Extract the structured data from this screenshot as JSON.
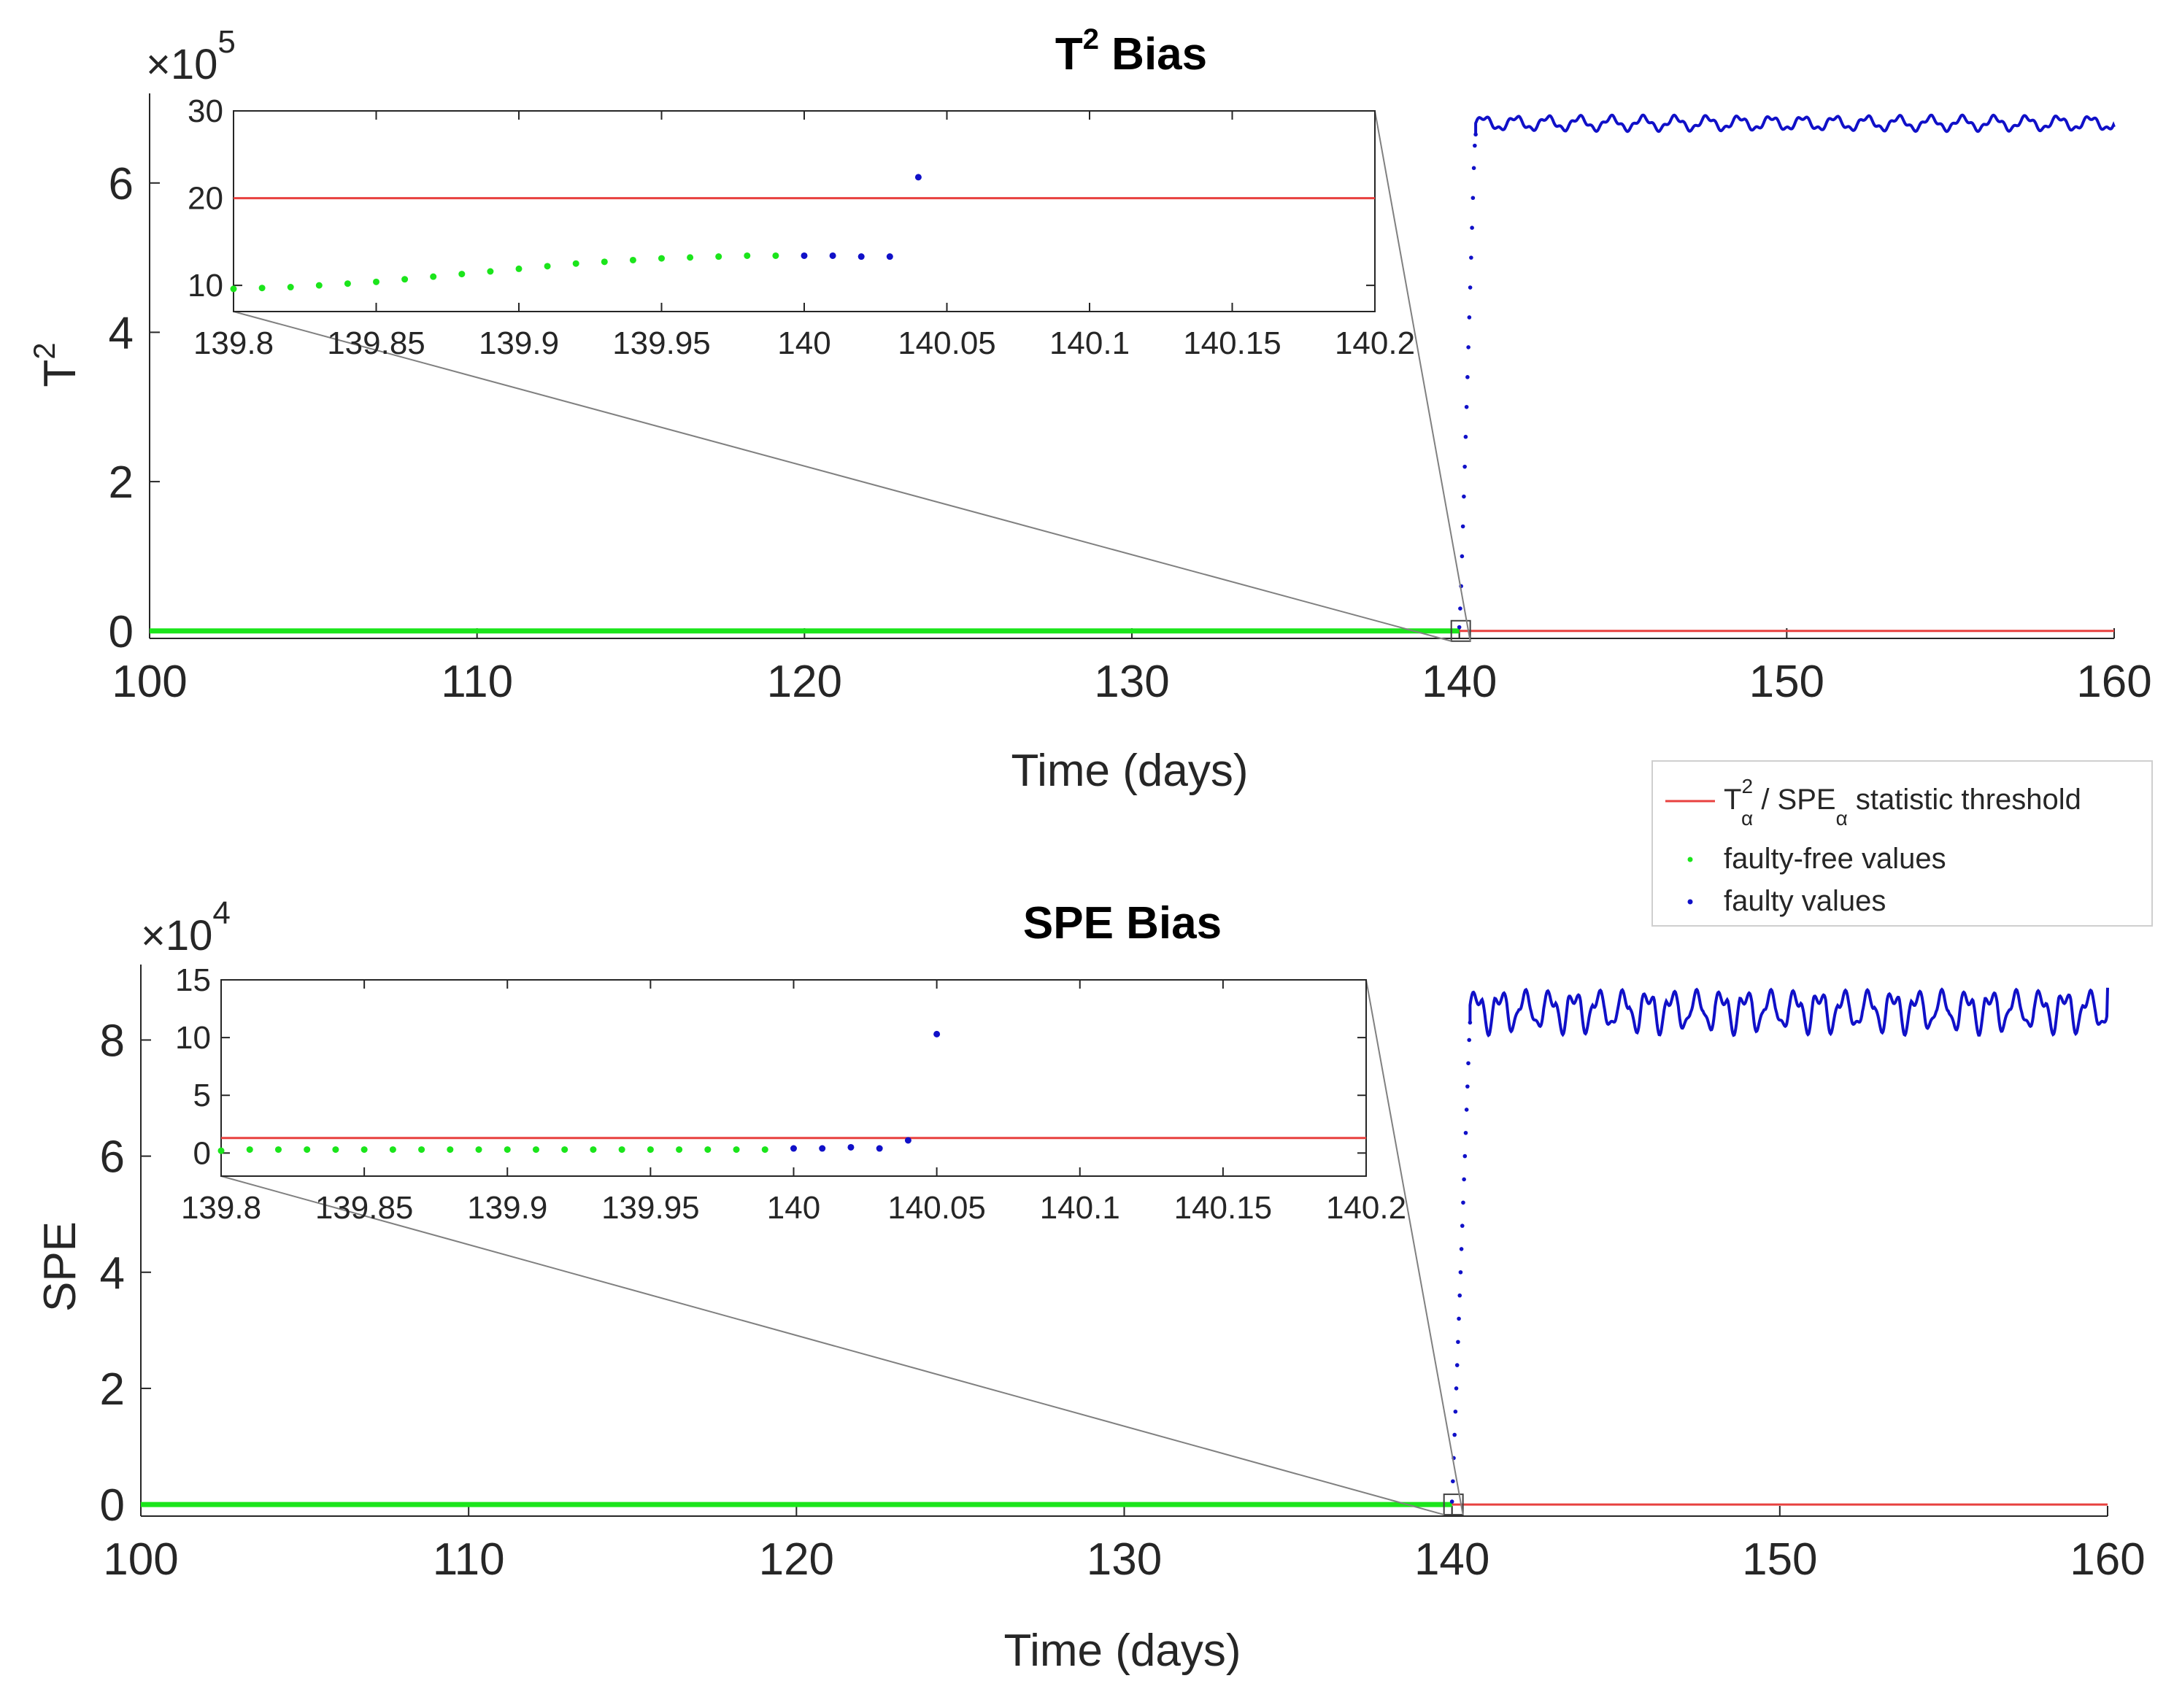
{
  "colors": {
    "threshold": "#e8413f",
    "fault_free": "#1be51b",
    "faulty": "#1010c8",
    "axis": "#262626",
    "zoom_lines": "#808080"
  },
  "legend": {
    "threshold_label": "T²α / SPEα statistic threshold",
    "threshold_label_parts": {
      "t": "T",
      "sup": "2",
      "alpha": "α",
      "mid": " / SPE",
      "alpha2": "α",
      "tail": " statistic threshold"
    },
    "fault_free_label": "faulty-free values",
    "faulty_label": "faulty values"
  },
  "chart_data": [
    {
      "id": "t2",
      "type": "scatter",
      "title": "T² Bias",
      "title_parts": {
        "main": "T",
        "sup": "2",
        "rest": " Bias"
      },
      "xlabel": "Time (days)",
      "ylabel": "T²",
      "ylabel_parts": {
        "main": "T",
        "sup": "2"
      },
      "exponent_label": {
        "base": "×10",
        "exp": "5"
      },
      "x_range": [
        100,
        160
      ],
      "y_range": [
        -0.1,
        7.2
      ],
      "x_ticks": [
        100,
        110,
        120,
        130,
        140,
        150,
        160
      ],
      "x_tick_labels": [
        "100",
        "110",
        "120",
        "130",
        "140",
        "150",
        "160"
      ],
      "y_ticks": [
        0,
        2,
        4,
        6
      ],
      "y_tick_labels": [
        "0",
        "2",
        "4",
        "6"
      ],
      "threshold": 0.0002,
      "fault_start": 140,
      "fault_free_range": [
        100,
        140
      ],
      "faulty_rise_values": [
        0.05,
        0.3,
        0.6,
        1.0,
        1.4,
        1.8,
        2.2,
        2.6,
        3.0,
        3.4,
        3.8,
        4.2,
        4.6,
        5.0,
        5.4,
        5.8,
        6.2,
        6.5,
        6.65
      ],
      "faulty_rise_x_range": [
        140.0,
        140.5
      ],
      "steady_level": 6.8,
      "steady_amplitude": 0.08,
      "steady_cycles": 20,
      "steady_end_value": 6.75,
      "inset": {
        "x_range": [
          139.8,
          140.2
        ],
        "y_range": [
          7,
          30
        ],
        "x_ticks": [
          139.8,
          139.85,
          139.9,
          139.95,
          140,
          140.05,
          140.1,
          140.15,
          140.2
        ],
        "x_tick_labels": [
          "139.8",
          "139.85",
          "139.9",
          "139.95",
          "140",
          "140.05",
          "140.1",
          "140.15",
          "140.2"
        ],
        "y_ticks": [
          10,
          20,
          30
        ],
        "y_tick_labels": [
          "10",
          "20",
          "30"
        ],
        "threshold": 20,
        "fault_free_points": [
          [
            139.8,
            9.6
          ],
          [
            139.81,
            9.7
          ],
          [
            139.82,
            9.8
          ],
          [
            139.83,
            10.0
          ],
          [
            139.84,
            10.2
          ],
          [
            139.85,
            10.4
          ],
          [
            139.86,
            10.7
          ],
          [
            139.87,
            11.0
          ],
          [
            139.88,
            11.3
          ],
          [
            139.89,
            11.6
          ],
          [
            139.9,
            11.9
          ],
          [
            139.91,
            12.2
          ],
          [
            139.92,
            12.5
          ],
          [
            139.93,
            12.7
          ],
          [
            139.94,
            12.9
          ],
          [
            139.95,
            13.1
          ],
          [
            139.96,
            13.2
          ],
          [
            139.97,
            13.3
          ],
          [
            139.98,
            13.4
          ],
          [
            139.99,
            13.4
          ]
        ],
        "faulty_points": [
          [
            140.0,
            13.4
          ],
          [
            140.01,
            13.4
          ],
          [
            140.02,
            13.3
          ],
          [
            140.03,
            13.3
          ],
          [
            140.04,
            22.4
          ]
        ]
      }
    },
    {
      "id": "spe",
      "type": "scatter",
      "title": "SPE Bias",
      "xlabel": "Time (days)",
      "ylabel": "SPE",
      "exponent_label": {
        "base": "×10",
        "exp": "4"
      },
      "x_range": [
        100,
        160
      ],
      "y_range": [
        -0.2,
        9.3
      ],
      "x_ticks": [
        100,
        110,
        120,
        130,
        140,
        150,
        160
      ],
      "x_tick_labels": [
        "100",
        "110",
        "120",
        "130",
        "140",
        "150",
        "160"
      ],
      "y_ticks": [
        0,
        2,
        4,
        6,
        8
      ],
      "y_tick_labels": [
        "0",
        "2",
        "4",
        "6",
        "8"
      ],
      "threshold": 0.0002,
      "fault_start": 140,
      "fault_free_range": [
        100,
        140
      ],
      "faulty_rise_values": [
        0.05,
        0.4,
        0.8,
        1.2,
        1.6,
        2.0,
        2.4,
        2.8,
        3.2,
        3.6,
        4.0,
        4.4,
        4.8,
        5.2,
        5.6,
        6.0,
        6.4,
        6.8,
        7.2,
        7.6,
        8.0,
        8.3
      ],
      "faulty_rise_x_range": [
        140.0,
        140.55
      ],
      "steady_level": 8.6,
      "steady_amplitude": 0.25,
      "steady_cycles": 26,
      "steady_end_value": 8.9,
      "inset": {
        "x_range": [
          139.8,
          140.2
        ],
        "y_range": [
          -2,
          15
        ],
        "x_ticks": [
          139.8,
          139.85,
          139.9,
          139.95,
          140,
          140.05,
          140.1,
          140.15,
          140.2
        ],
        "x_tick_labels": [
          "139.8",
          "139.85",
          "139.9",
          "139.95",
          "140",
          "140.05",
          "140.1",
          "140.15",
          "140.2"
        ],
        "y_ticks": [
          0,
          5,
          10,
          15
        ],
        "y_tick_labels": [
          "0",
          "5",
          "10",
          "15"
        ],
        "threshold": 1.3,
        "fault_free_points": [
          [
            139.8,
            0.2
          ],
          [
            139.81,
            0.3
          ],
          [
            139.82,
            0.3
          ],
          [
            139.83,
            0.3
          ],
          [
            139.84,
            0.3
          ],
          [
            139.85,
            0.3
          ],
          [
            139.86,
            0.3
          ],
          [
            139.87,
            0.3
          ],
          [
            139.88,
            0.3
          ],
          [
            139.89,
            0.3
          ],
          [
            139.9,
            0.3
          ],
          [
            139.91,
            0.3
          ],
          [
            139.92,
            0.3
          ],
          [
            139.93,
            0.3
          ],
          [
            139.94,
            0.3
          ],
          [
            139.95,
            0.3
          ],
          [
            139.96,
            0.3
          ],
          [
            139.97,
            0.3
          ],
          [
            139.98,
            0.3
          ],
          [
            139.99,
            0.3
          ]
        ],
        "faulty_points": [
          [
            140.0,
            0.4
          ],
          [
            140.01,
            0.4
          ],
          [
            140.02,
            0.5
          ],
          [
            140.03,
            0.4
          ],
          [
            140.04,
            1.1
          ],
          [
            140.05,
            10.3
          ]
        ]
      }
    }
  ]
}
